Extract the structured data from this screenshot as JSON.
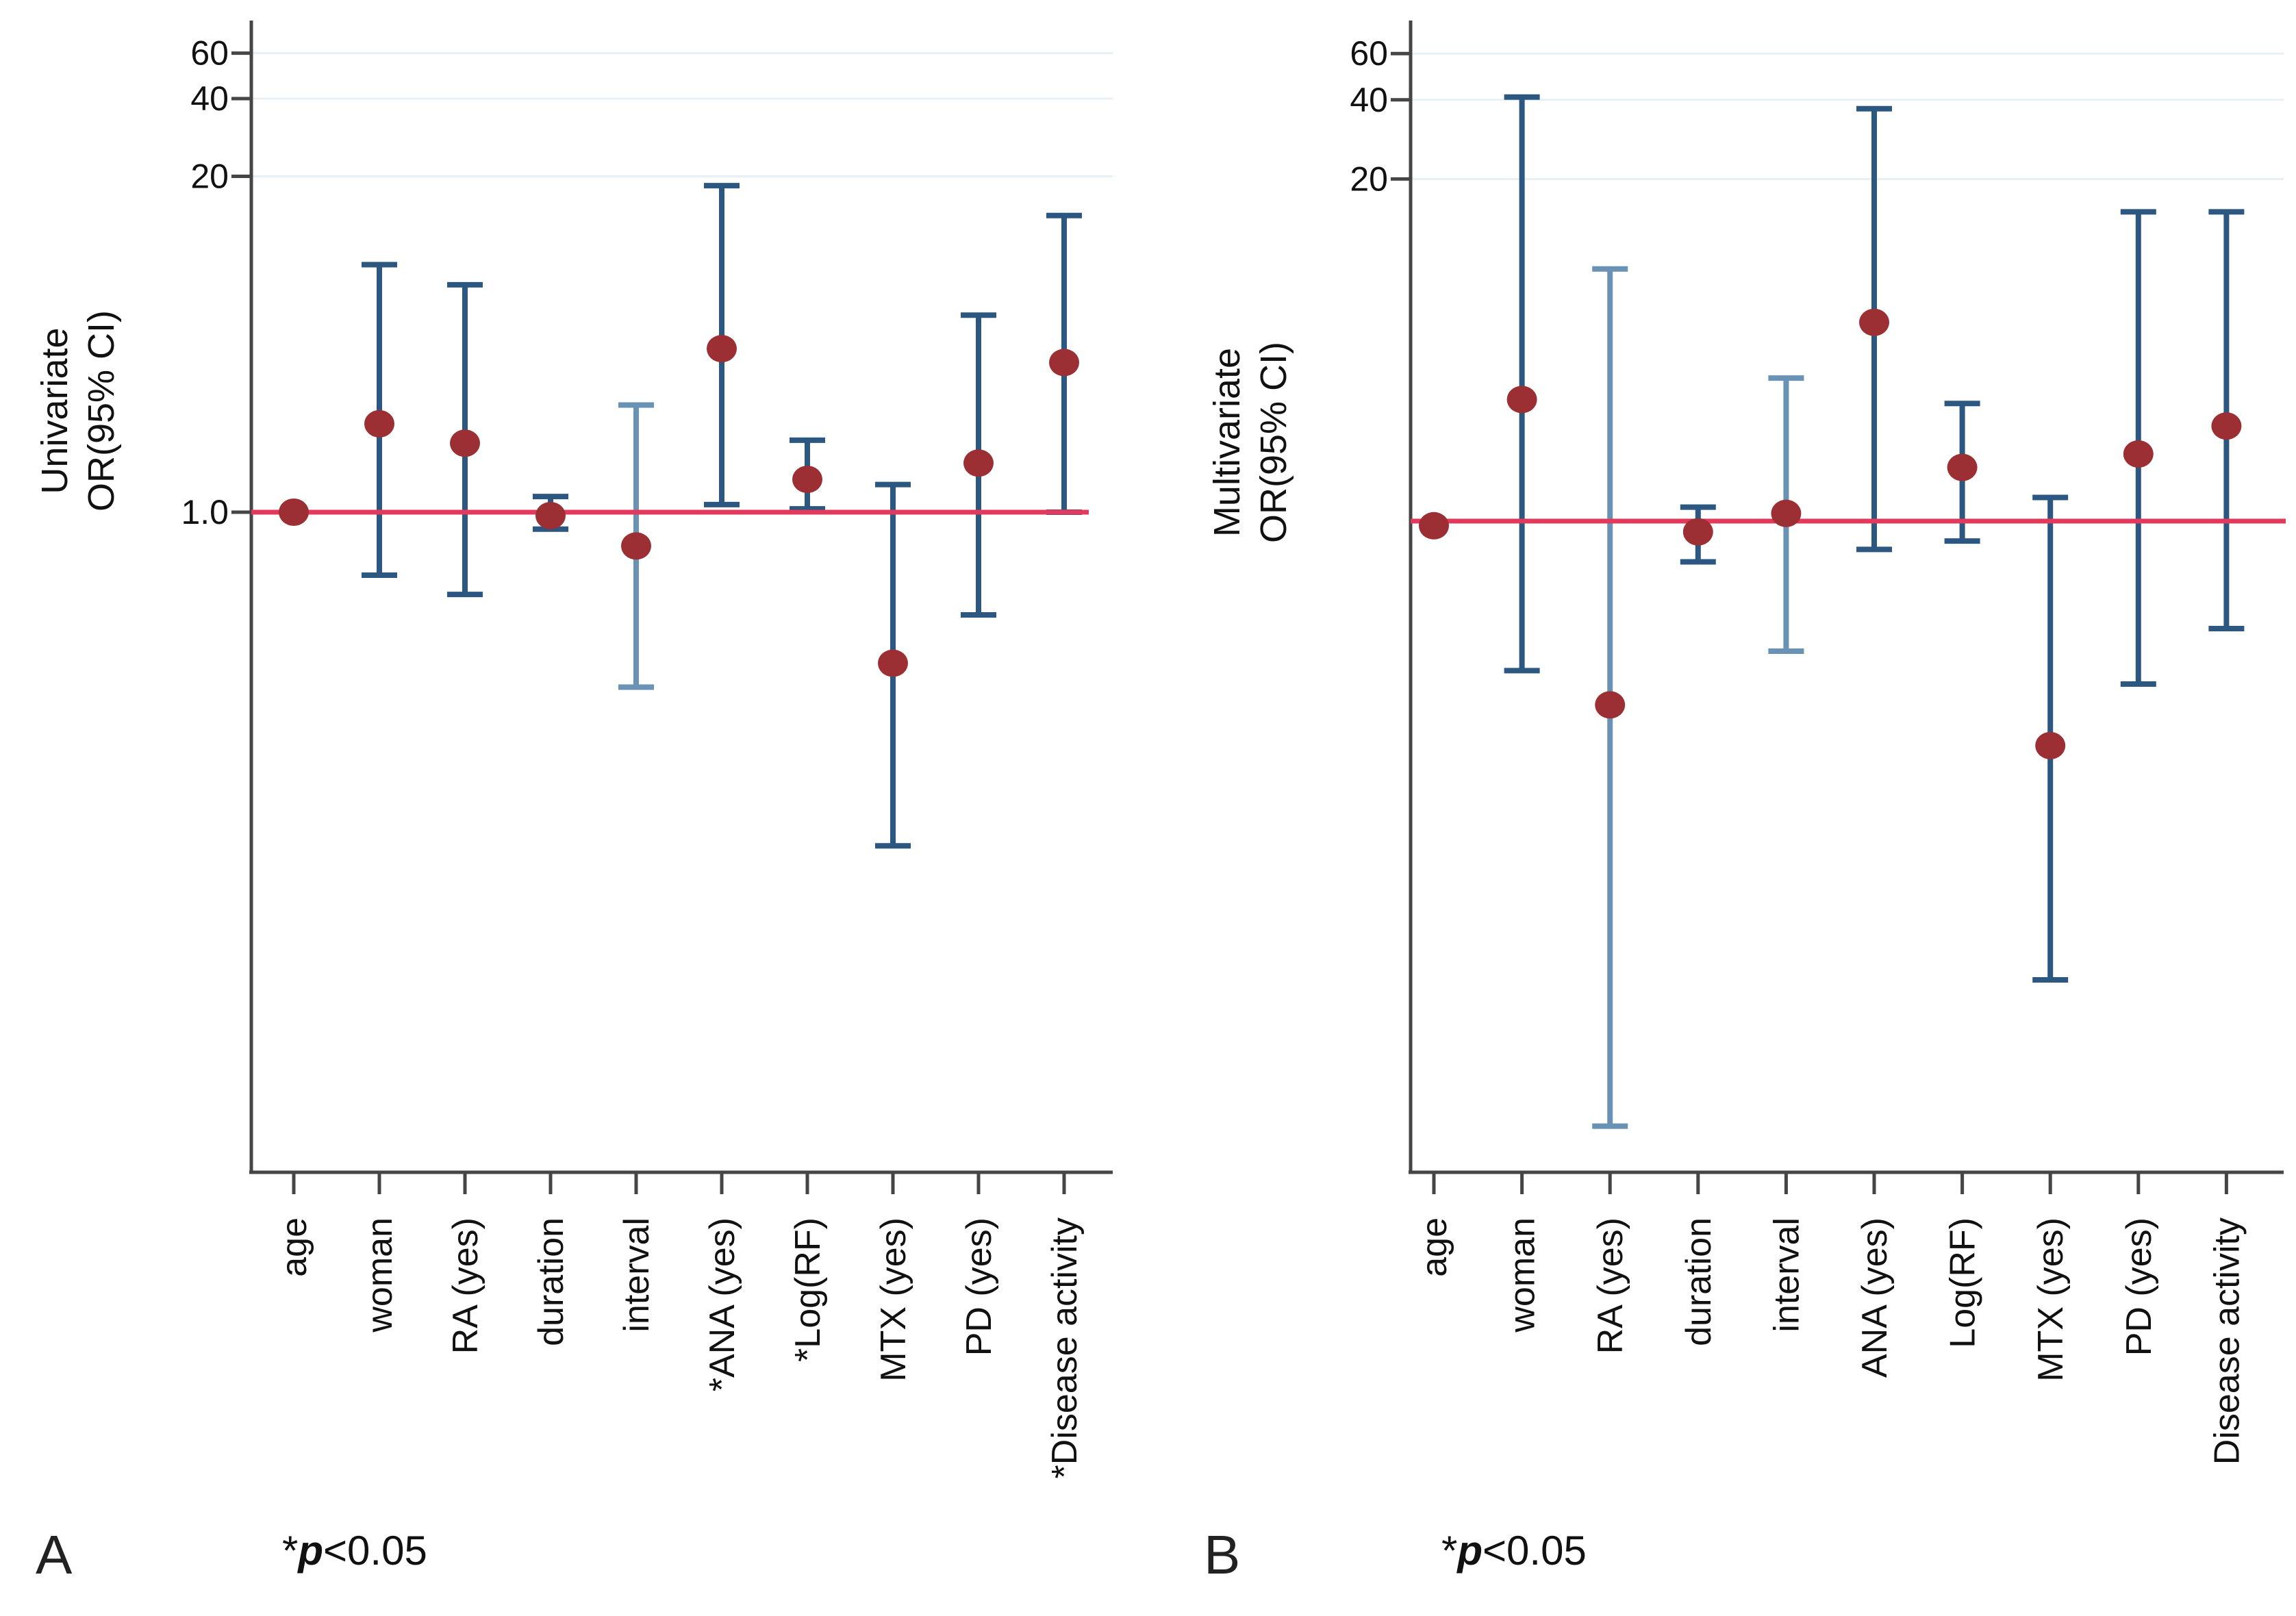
{
  "labels": {
    "panelA": {
      "letter": "A",
      "ylabel_line1": "Univariate",
      "ylabel_line2": "OR(95% CI)",
      "footnote_star": "*",
      "footnote_p": "p",
      "footnote_rest": "<0.05"
    },
    "panelB": {
      "letter": "B",
      "ylabel_line1": "Multivariate",
      "ylabel_line2": "OR(95% CI)",
      "footnote_star": "*",
      "footnote_p": "p",
      "footnote_rest": "<0.05"
    }
  },
  "colors": {
    "marker": "#9c2f34",
    "errorbar": "#2b5780",
    "errorbar_light": "#6a92b4",
    "ref_line": "#e23a5c",
    "grid": "#e7f1f5",
    "axis": "#454545",
    "text": "#111111"
  },
  "chart_data": [
    {
      "type": "scatter",
      "variant": "forest_plot_errorbars",
      "panel": "A",
      "title": "Univariate OR(95% CI)",
      "yscale": "log",
      "ytick_labels": [
        "60",
        "40",
        "20"
      ],
      "ytick_values": [
        60,
        40,
        20
      ],
      "ref_line_value": 1.0,
      "ref_line_label": "1.0",
      "footnote": "*p<0.05",
      "grid": true,
      "legend": false,
      "categories": [
        "age",
        "woman",
        "RA (yes)",
        "duration",
        "interval",
        "*ANA (yes)",
        "*Log(RF)",
        "MTX (yes)",
        "PD (yes)",
        "*Disease activity"
      ],
      "series": [
        {
          "name": "OR (95% CI)",
          "points": [
            {
              "category": "age",
              "or": 1.0,
              "ci_low": null,
              "ci_high": null
            },
            {
              "category": "woman",
              "or": 2.2,
              "ci_low": 0.57,
              "ci_high": 9.1
            },
            {
              "category": "RA (yes)",
              "or": 1.85,
              "ci_low": 0.48,
              "ci_high": 7.6
            },
            {
              "category": "duration",
              "or": 0.97,
              "ci_low": 0.86,
              "ci_high": 1.15
            },
            {
              "category": "interval",
              "or": 0.74,
              "ci_low": 0.21,
              "ci_high": 2.6,
              "light": true
            },
            {
              "category": "*ANA (yes)",
              "or": 4.3,
              "ci_low": 1.07,
              "ci_high": 18.4
            },
            {
              "category": "*Log(RF)",
              "or": 1.34,
              "ci_low": 1.03,
              "ci_high": 1.9
            },
            {
              "category": "MTX (yes)",
              "or": 0.26,
              "ci_low": 0.051,
              "ci_high": 1.28
            },
            {
              "category": "PD (yes)",
              "or": 1.55,
              "ci_low": 0.4,
              "ci_high": 5.8
            },
            {
              "category": "*Disease activity",
              "or": 3.8,
              "ci_low": 1.0,
              "ci_high": 14.1
            }
          ]
        }
      ]
    },
    {
      "type": "scatter",
      "variant": "forest_plot_errorbars",
      "panel": "B",
      "title": "Multivariate OR(95% CI)",
      "yscale": "log",
      "ytick_labels": [
        "60",
        "40",
        "20"
      ],
      "ytick_values": [
        60,
        40,
        20
      ],
      "ref_line_value": 1.0,
      "ref_line_label": null,
      "footnote": "*p<0.05",
      "grid": true,
      "legend": false,
      "categories": [
        "age",
        "woman",
        "RA (yes)",
        "duration",
        "interval",
        "ANA (yes)",
        "Log(RF)",
        "MTX (yes)",
        "PD (yes)",
        "Disease activity"
      ],
      "series": [
        {
          "name": "OR (95% CI)",
          "points": [
            {
              "category": "age",
              "or": 0.96,
              "ci_low": null,
              "ci_high": null
            },
            {
              "category": "woman",
              "or": 2.9,
              "ci_low": 0.27,
              "ci_high": 41
            },
            {
              "category": "RA (yes)",
              "or": 0.2,
              "ci_low": 0.005,
              "ci_high": 9.1,
              "light": true
            },
            {
              "category": "duration",
              "or": 0.91,
              "ci_low": 0.7,
              "ci_high": 1.13
            },
            {
              "category": "interval",
              "or": 1.07,
              "ci_low": 0.32,
              "ci_high": 3.5,
              "light": true
            },
            {
              "category": "ANA (yes)",
              "or": 5.7,
              "ci_low": 0.78,
              "ci_high": 37
            },
            {
              "category": "Log(RF)",
              "or": 1.6,
              "ci_low": 0.84,
              "ci_high": 2.8
            },
            {
              "category": "MTX (yes)",
              "or": 0.14,
              "ci_low": 0.018,
              "ci_high": 1.23
            },
            {
              "category": "PD (yes)",
              "or": 1.8,
              "ci_low": 0.24,
              "ci_high": 15
            },
            {
              "category": "Disease activity",
              "or": 2.3,
              "ci_low": 0.39,
              "ci_high": 15
            }
          ]
        }
      ]
    }
  ]
}
